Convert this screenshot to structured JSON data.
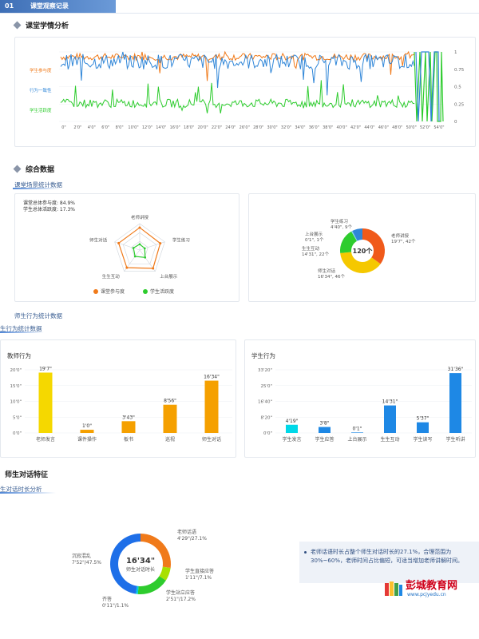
{
  "header": {
    "number": "01",
    "title": "课堂观察记录"
  },
  "sections": {
    "analysis": "课堂学情分析",
    "overall": "综合数据",
    "scene_stats": "课堂场景统计数据",
    "behavior_stats": "师生行为统计数据",
    "behavior_stats_2": "生行为统计数据",
    "dialog_feature": "师生对话特征",
    "dialog_duration": "生对话时长分析"
  },
  "timeline": {
    "series_labels": [
      "学生参与度",
      "行为一致性",
      "学生活跃度"
    ],
    "series_colors": [
      "#f07a1a",
      "#2f86d8",
      "#2ecc2e"
    ],
    "right_ticks": [
      "1",
      "0.75",
      "0.5",
      "0.25",
      "0"
    ],
    "x_ticks": [
      "0\"",
      "2'0\"",
      "4'0\"",
      "6'0\"",
      "8'0\"",
      "10'0\"",
      "12'0\"",
      "14'0\"",
      "16'0\"",
      "18'0\"",
      "20'0\"",
      "22'0\"",
      "24'0\"",
      "26'0\"",
      "28'0\"",
      "30'0\"",
      "32'0\"",
      "34'0\"",
      "36'0\"",
      "38'0\"",
      "40'0\"",
      "42'0\"",
      "44'0\"",
      "46'0\"",
      "48'0\"",
      "50'0\"",
      "52'0\"",
      "54'0\""
    ]
  },
  "radar": {
    "stat1": "课堂总体参与度: 84.9%",
    "stat2": "学生总体活跃度: 17.3%",
    "axes": [
      "老师讲授",
      "学生练习",
      "上台展示",
      "生生互动",
      "师生对话"
    ],
    "legend": [
      "课堂参与度",
      "学生活跃度"
    ],
    "engagement": [
      0.85,
      0.82,
      0.86,
      0.83,
      0.84
    ],
    "activity": [
      0.22,
      0.2,
      0.35,
      0.3,
      0.25
    ]
  },
  "donut1": {
    "center": "120个",
    "segments": [
      {
        "name": "老师讲授",
        "value": 42,
        "label1": "老师讲授",
        "label2": "19'7\", 42个",
        "color": "#f05a1a"
      },
      {
        "name": "师生对话",
        "value": 46,
        "label1": "师生对话",
        "label2": "16'34\", 46个",
        "color": "#f5c800"
      },
      {
        "name": "生生互动",
        "value": 22,
        "label1": "生生互动",
        "label2": "14'31\", 22个",
        "color": "#2ecc2e"
      },
      {
        "name": "上台展示",
        "value": 1,
        "label1": "上台展示",
        "label2": "0'1\", 1个",
        "color": "#7fd3e8"
      },
      {
        "name": "学生练习",
        "value": 9,
        "label1": "学生练习",
        "label2": "4'40\", 9个",
        "color": "#2f86d8"
      }
    ]
  },
  "teacher_chart": {
    "title": "教师行为",
    "y_ticks": [
      "20'0\"",
      "15'0\"",
      "10'0\"",
      "5'0\"",
      "0'0\""
    ],
    "ymax_seconds": 1200,
    "categories": [
      "老师发言",
      "课件操作",
      "板书",
      "巡视",
      "师生对话"
    ],
    "labels": [
      "19'7\"",
      "1'0\"",
      "3'43\"",
      "8'56\"",
      "16'34\""
    ],
    "values_seconds": [
      1147,
      60,
      223,
      536,
      994
    ],
    "colors": [
      "#f5d800",
      "#f5a000",
      "#f5a000",
      "#f5a000",
      "#f5a000"
    ]
  },
  "student_chart": {
    "title": "学生行为",
    "y_ticks": [
      "33'20\"",
      "25'0\"",
      "16'40\"",
      "8'20\"",
      "0'0\""
    ],
    "ymax_seconds": 2000,
    "categories": [
      "学生发言",
      "学生应答",
      "上台展示",
      "生生互动",
      "学生读写",
      "学生听讲"
    ],
    "labels": [
      "4'19\"",
      "3'8\"",
      "0'1\"",
      "14'31\"",
      "5'37\"",
      "31'36\""
    ],
    "values_seconds": [
      259,
      188,
      1,
      871,
      337,
      1896
    ],
    "colors": [
      "#00d8e8",
      "#1e88e5",
      "#1e88e5",
      "#1e88e5",
      "#1e88e5",
      "#1e88e5"
    ]
  },
  "donut2": {
    "center_value": "16'34\"",
    "center_label": "师生对话时长",
    "segments": [
      {
        "label1": "老师话语",
        "label2": "4'29\"/27.1%",
        "value": 27.1,
        "color": "#f07a1a"
      },
      {
        "label1": "学生直接应答",
        "label2": "1'11\"/7.1%",
        "value": 7.1,
        "color": "#a8e000"
      },
      {
        "label1": "学生站立应答",
        "label2": "2'51\"/17.2%",
        "value": 17.2,
        "color": "#2ecc2e"
      },
      {
        "label1": "齐答",
        "label2": "0'11\"/1.1%",
        "value": 1.1,
        "color": "#00c8e0"
      },
      {
        "label1": "沉寂混乱",
        "label2": "7'52\"/47.5%",
        "value": 47.5,
        "color": "#1e6fe8"
      }
    ]
  },
  "note": {
    "text": "老师话语时长占整个师生对话时长的27.1%，合理范围为30%~60%，老师时间占比偏短，可适当增加老师讲解时间。"
  },
  "watermark": {
    "title": "彭城教育网",
    "url": "www.pcjyedu.cn"
  }
}
